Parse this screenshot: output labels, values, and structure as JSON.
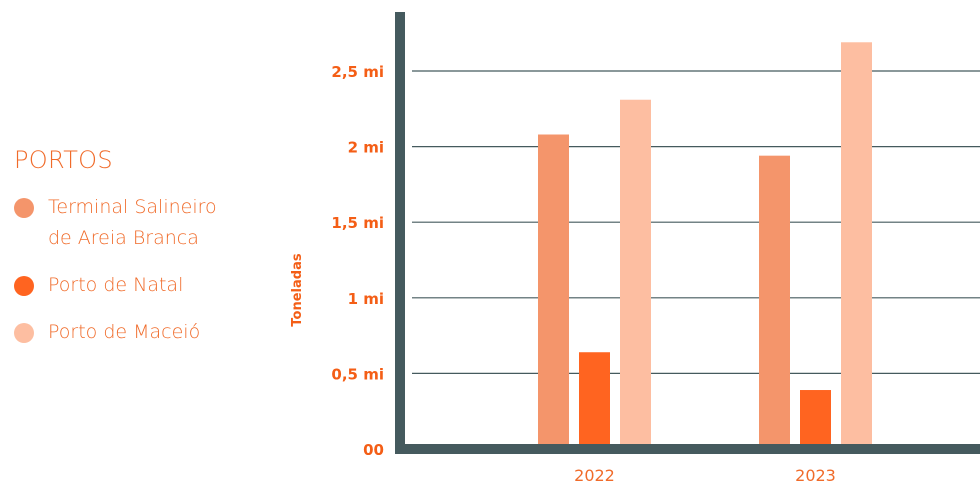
{
  "legend": {
    "title": "PORTOS",
    "items": [
      {
        "label_line1": "Terminal Salineiro",
        "label_line2": "de Areia Branca",
        "color": "#f4956b"
      },
      {
        "label_line1": "Porto de Natal",
        "label_line2": "",
        "color": "#ff6420"
      },
      {
        "label_line1": "Porto de Maceió",
        "label_line2": "",
        "color": "#fdbea1"
      }
    ]
  },
  "chart_data": {
    "type": "bar",
    "categories": [
      "2022",
      "2023"
    ],
    "series": [
      {
        "name": "Terminal Salineiro de Areia Branca",
        "color": "#f4956b",
        "values": [
          2.08,
          1.94
        ]
      },
      {
        "name": "Porto de Natal",
        "color": "#ff6420",
        "values": [
          0.64,
          0.39
        ]
      },
      {
        "name": "Porto de Maceió",
        "color": "#fdbea1",
        "values": [
          2.31,
          2.69
        ]
      }
    ],
    "ylabel": "Toneladas",
    "ylim": [
      0,
      2.5
    ],
    "yticks": [
      0,
      0.5,
      1,
      1.5,
      2,
      2.5
    ],
    "ytick_labels": [
      "00",
      "0,5 mi",
      "1 mi",
      "1,5 mi",
      "2 mi",
      "2,5 mi"
    ],
    "grid": true,
    "legend_position": "left",
    "axis_color": "#455a5e"
  }
}
